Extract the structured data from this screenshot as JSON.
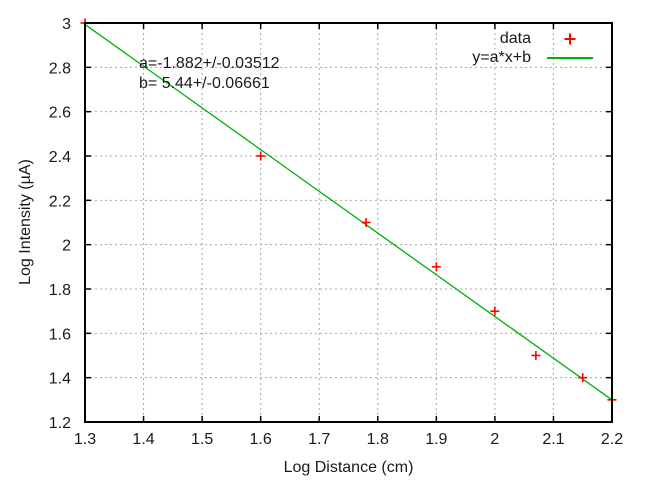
{
  "chart_data": {
    "type": "scatter",
    "title": "",
    "xlabel": "Log Distance (cm)",
    "ylabel": "Log Intensity (µA)",
    "xlim": [
      1.3,
      2.2
    ],
    "ylim": [
      1.2,
      3.0
    ],
    "grid": true,
    "legend_position": "top-right",
    "xticks": [
      {
        "v": 1.3,
        "label": "1.3"
      },
      {
        "v": 1.4,
        "label": "1.4"
      },
      {
        "v": 1.5,
        "label": "1.5"
      },
      {
        "v": 1.6,
        "label": "1.6"
      },
      {
        "v": 1.7,
        "label": "1.7"
      },
      {
        "v": 1.8,
        "label": "1.8"
      },
      {
        "v": 1.9,
        "label": "1.9"
      },
      {
        "v": 2.0,
        "label": "2"
      },
      {
        "v": 2.1,
        "label": "2.1"
      },
      {
        "v": 2.2,
        "label": "2.2"
      }
    ],
    "yticks": [
      {
        "v": 1.2,
        "label": "1.2"
      },
      {
        "v": 1.4,
        "label": "1.4"
      },
      {
        "v": 1.6,
        "label": "1.6"
      },
      {
        "v": 1.8,
        "label": "1.8"
      },
      {
        "v": 2.0,
        "label": "2"
      },
      {
        "v": 2.2,
        "label": "2.2"
      },
      {
        "v": 2.4,
        "label": "2.4"
      },
      {
        "v": 2.6,
        "label": "2.6"
      },
      {
        "v": 2.8,
        "label": "2.8"
      },
      {
        "v": 3.0,
        "label": "3"
      }
    ],
    "series": [
      {
        "name": "data",
        "kind": "points",
        "marker": "plus",
        "color": "#ff0000",
        "points": [
          [
            1.3,
            3.0
          ],
          [
            1.6,
            2.4
          ],
          [
            1.78,
            2.1
          ],
          [
            1.9,
            1.9
          ],
          [
            2.0,
            1.7
          ],
          [
            2.07,
            1.5
          ],
          [
            2.15,
            1.4
          ],
          [
            2.2,
            1.3
          ]
        ]
      },
      {
        "name": "y=a*x+b",
        "kind": "line",
        "color": "#00b000",
        "fit": {
          "a": -1.882,
          "b": 5.44
        }
      }
    ],
    "annotations": [
      "a=-1.882+/-0.03512",
      "b= 5.44+/-0.06661"
    ],
    "colors": {
      "data": "#ff0000",
      "fit": "#00b000",
      "grid": "#a8a8a8",
      "text": "#1a1a1a",
      "border": "#000000",
      "background": "#ffffff"
    }
  }
}
